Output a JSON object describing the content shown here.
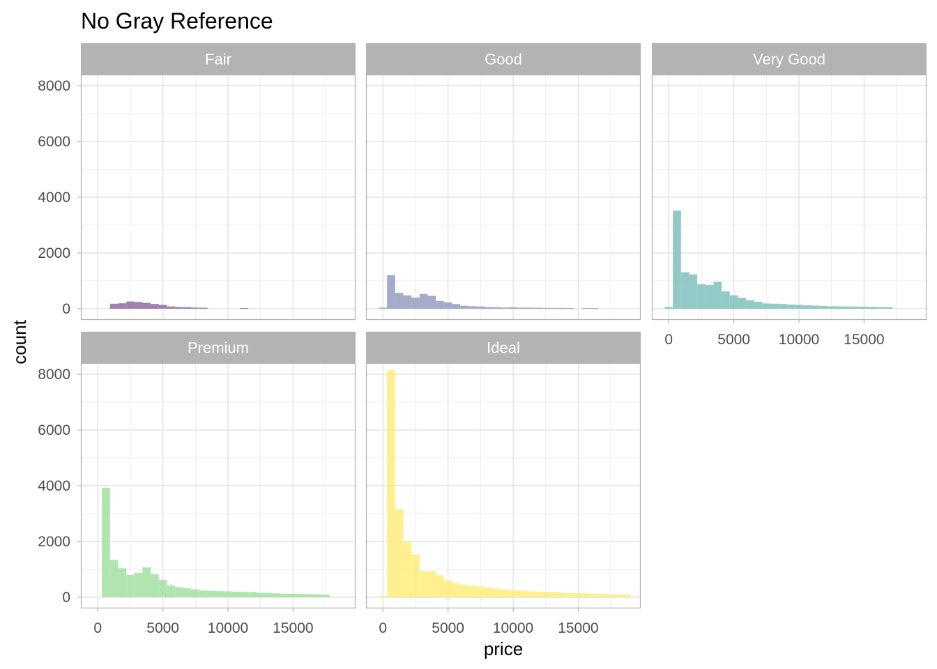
{
  "chart_data": {
    "type": "bar",
    "title": "No Gray Reference",
    "xlabel": "price",
    "ylabel": "count",
    "xlim": [
      -1300,
      19800
    ],
    "ylim": [
      -400,
      8400
    ],
    "x_ticks": [
      0,
      5000,
      10000,
      15000
    ],
    "y_ticks": [
      0,
      2000,
      4000,
      6000,
      8000
    ],
    "grid": true,
    "legend": "none",
    "bin_width": 625,
    "bin_start": [
      -313,
      313,
      938,
      1563,
      2188,
      2813,
      3438,
      4063,
      4688,
      5313,
      5938,
      6563,
      7188,
      7813,
      8438,
      9063,
      9688,
      10313,
      10938,
      11563,
      12188,
      12813,
      13438,
      14063,
      14688,
      15313,
      15938,
      16563,
      17188,
      17813,
      18438
    ],
    "panels": [
      {
        "label": "Fair",
        "color": "#7d5a95",
        "counts": [
          0,
          0,
          180,
          195,
          260,
          240,
          210,
          170,
          140,
          80,
          60,
          55,
          40,
          35,
          0,
          0,
          0,
          0,
          25,
          0,
          0,
          0,
          0,
          0,
          0,
          0,
          0,
          0,
          0,
          0,
          0
        ]
      },
      {
        "label": "Good",
        "color": "#8790b8",
        "counts": [
          40,
          1200,
          570,
          480,
          400,
          530,
          460,
          280,
          230,
          170,
          110,
          90,
          80,
          60,
          55,
          45,
          50,
          40,
          40,
          35,
          30,
          30,
          30,
          25,
          0,
          25,
          25,
          0,
          0,
          0,
          0
        ]
      },
      {
        "label": "Very Good",
        "color": "#6fb8b4",
        "counts": [
          60,
          3520,
          1310,
          1230,
          880,
          850,
          960,
          620,
          480,
          390,
          300,
          250,
          190,
          180,
          170,
          150,
          140,
          120,
          115,
          100,
          90,
          85,
          80,
          75,
          70,
          65,
          60,
          55,
          0,
          0,
          0
        ]
      },
      {
        "label": "Premium",
        "color": "#96dc94",
        "counts": [
          0,
          3930,
          1340,
          1040,
          800,
          880,
          1070,
          820,
          620,
          420,
          360,
          320,
          280,
          240,
          230,
          220,
          210,
          200,
          190,
          180,
          160,
          155,
          140,
          130,
          125,
          120,
          110,
          100,
          90,
          0,
          0
        ]
      },
      {
        "label": "Ideal",
        "color": "#fdeb6a",
        "counts": [
          50,
          8150,
          3160,
          1990,
          1540,
          930,
          930,
          790,
          600,
          500,
          450,
          410,
          380,
          340,
          310,
          280,
          260,
          240,
          220,
          200,
          185,
          175,
          160,
          150,
          145,
          140,
          130,
          120,
          110,
          105,
          100
        ]
      }
    ]
  }
}
